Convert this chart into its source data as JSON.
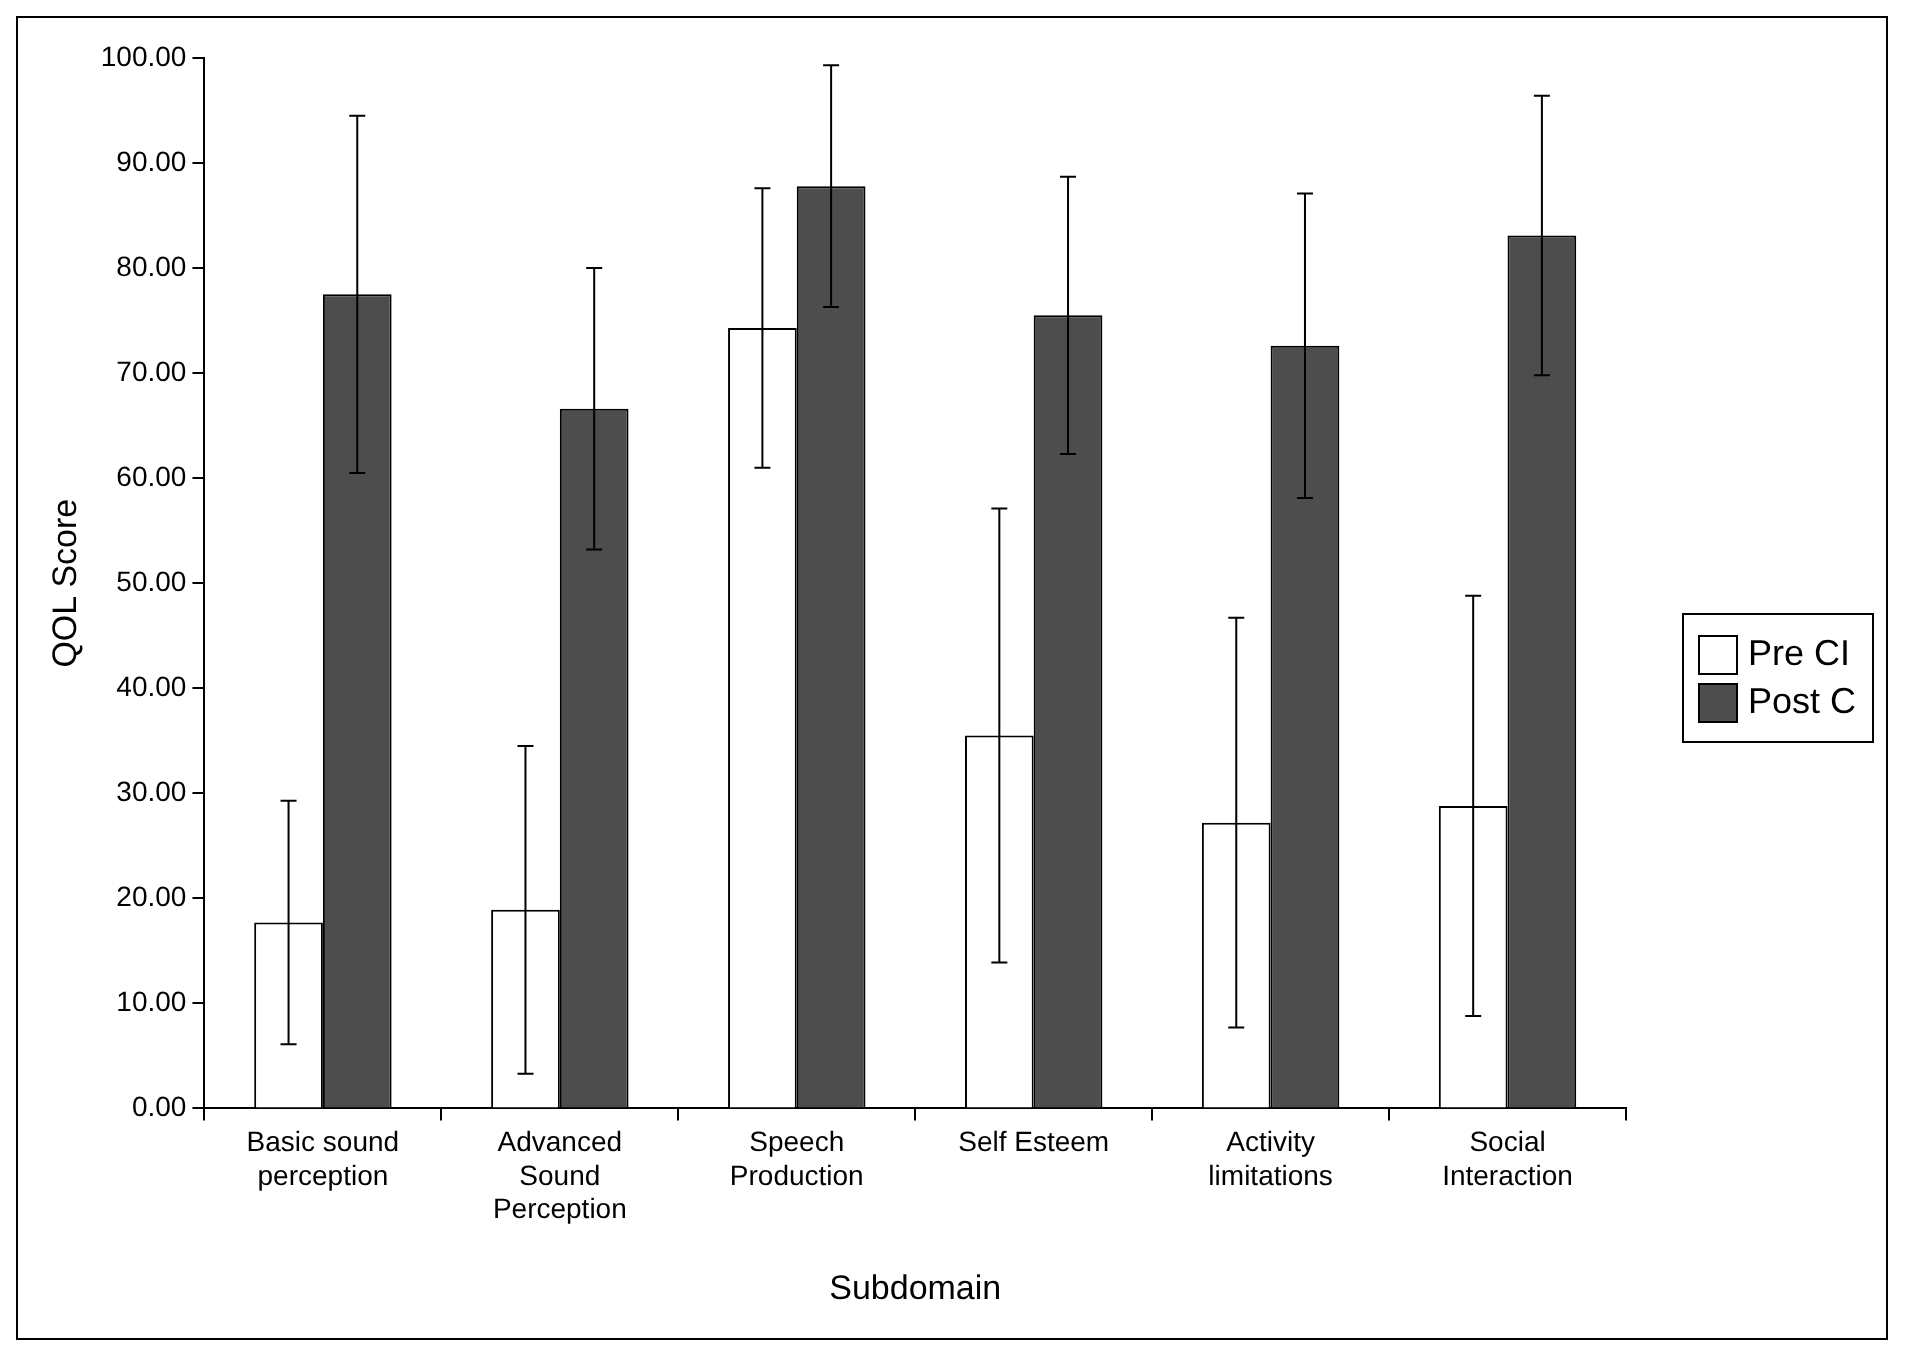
{
  "chart_data": {
    "type": "bar",
    "xlabel": "Subdomain",
    "ylabel": "QOL Score",
    "categories": [
      "Basic sound perception",
      "Advanced Sound Perception",
      "Speech Production",
      "Self Esteem",
      "Activity limitations",
      "Social Interaction"
    ],
    "series": [
      {
        "name": "Pre CI",
        "color": "#ffffff",
        "values": [
          17.7,
          18.9,
          74.3,
          35.5,
          27.2,
          28.8
        ],
        "errors": [
          11.6,
          15.6,
          13.3,
          21.6,
          19.5,
          20
        ]
      },
      {
        "name": "Post C",
        "color": "#4d4d4d",
        "values": [
          77.5,
          66.6,
          87.8,
          75.5,
          72.6,
          83.1
        ],
        "errors": [
          17,
          13.4,
          11.5,
          13.2,
          14.5,
          13.3
        ]
      }
    ],
    "ylim": [
      0,
      100
    ],
    "yticks": [
      {
        "value": 0,
        "label": "0.00"
      },
      {
        "value": 10,
        "label": "10.00"
      },
      {
        "value": 20,
        "label": "20.00"
      },
      {
        "value": 30,
        "label": "30.00"
      },
      {
        "value": 40,
        "label": "40.00"
      },
      {
        "value": 50,
        "label": "50.00"
      },
      {
        "value": 60,
        "label": "60.00"
      },
      {
        "value": 70,
        "label": "70.00"
      },
      {
        "value": 80,
        "label": "80.00"
      },
      {
        "value": 90,
        "label": "90.00"
      },
      {
        "value": 100,
        "label": "100.00"
      }
    ],
    "grid": false,
    "legend": "right"
  }
}
